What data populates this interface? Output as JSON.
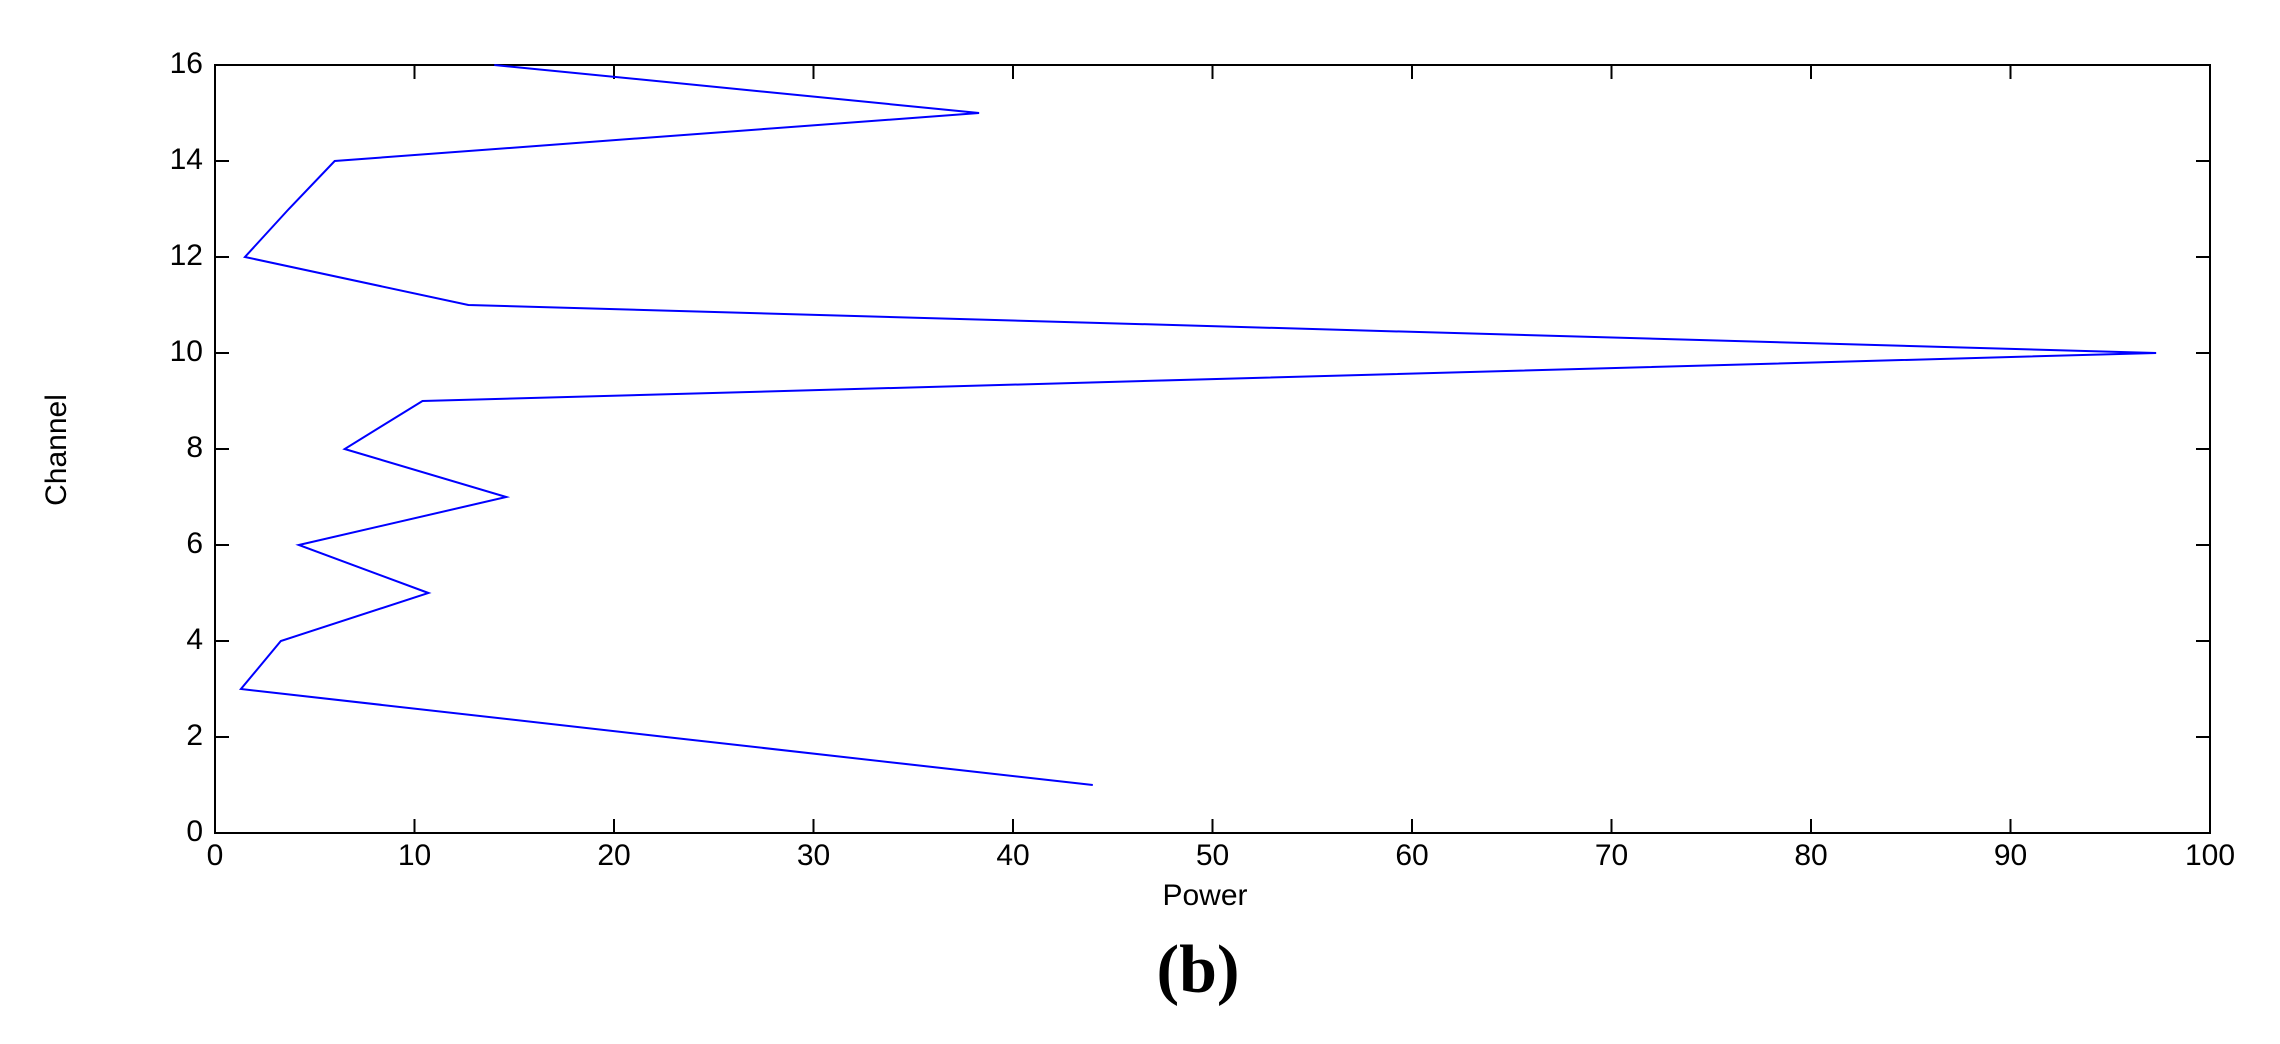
{
  "chart_data": {
    "type": "line",
    "x": [
      44,
      22.6,
      1.3,
      3.3,
      10.7,
      4.2,
      14.6,
      6.5,
      10.4,
      97.3,
      12.7,
      1.5,
      3.7,
      6,
      38.3,
      14
    ],
    "values": [
      1,
      2,
      3,
      4,
      5,
      6,
      7,
      8,
      9,
      10,
      11,
      12,
      13,
      14,
      15,
      16
    ],
    "color": "#0000ff",
    "xlim": [
      0,
      100
    ],
    "xticks": [
      0,
      10,
      20,
      30,
      40,
      50,
      60,
      70,
      80,
      90,
      100
    ],
    "ylim": [
      0,
      16
    ],
    "yticks": [
      0,
      2,
      4,
      6,
      8,
      10,
      12,
      14,
      16
    ],
    "xlabel": "Power",
    "ylabel": "Channel",
    "caption": "(b)"
  }
}
